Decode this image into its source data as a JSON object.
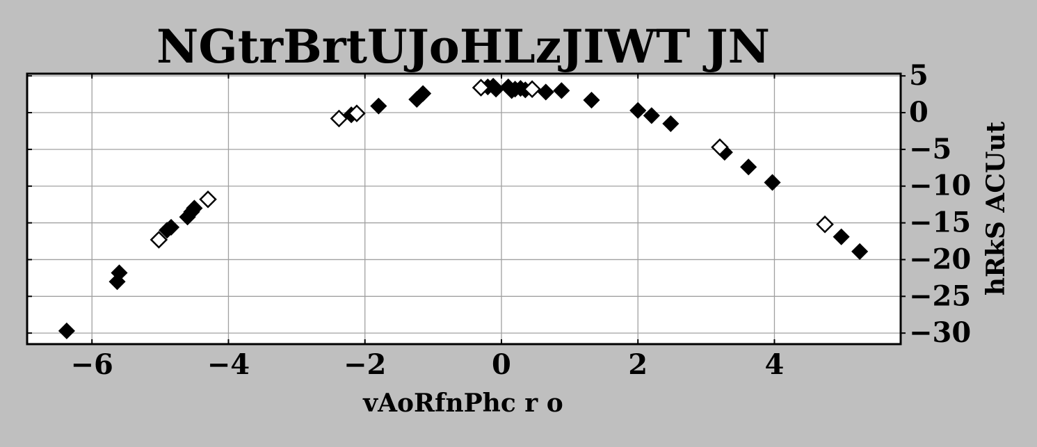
{
  "colors": {
    "background": "#bfbfbf",
    "plot_area": "#ffffff",
    "grid": "#a0a0a0",
    "marker": "#000000"
  },
  "chart_data": {
    "type": "scatter",
    "title": "NGtrBrtUJoHLzJIWT  JN",
    "xlabel": "vAoRfnPhc r o",
    "ylabel": "hRkS ACUut",
    "xlim": [
      -6.95,
      5.85
    ],
    "ylim": [
      -31.5,
      5.3
    ],
    "x_ticks": [
      -6,
      -4,
      -2,
      0,
      2,
      4
    ],
    "y_ticks": [
      5,
      0,
      -5,
      -10,
      -15,
      -20,
      -25,
      -30
    ],
    "y_axis_side": "right",
    "grid": true,
    "marker": "diamond",
    "series": [
      {
        "fill": "filled",
        "points": [
          [
            -6.37,
            -29.7
          ],
          [
            -5.63,
            -23.0
          ],
          [
            -5.6,
            -21.8
          ],
          [
            -4.9,
            -16.0
          ],
          [
            -4.84,
            -15.6
          ],
          [
            -4.6,
            -14.2
          ],
          [
            -4.54,
            -13.5
          ],
          [
            -4.5,
            -13.0
          ],
          [
            -2.2,
            -0.3
          ],
          [
            -1.8,
            0.9
          ],
          [
            -1.24,
            1.8
          ],
          [
            -1.15,
            2.6
          ],
          [
            -0.2,
            3.5
          ],
          [
            -0.12,
            3.6
          ],
          [
            -0.08,
            3.2
          ],
          [
            0.1,
            3.5
          ],
          [
            0.15,
            3.0
          ],
          [
            0.2,
            3.2
          ],
          [
            0.28,
            3.3
          ],
          [
            0.35,
            3.1
          ],
          [
            0.65,
            2.8
          ],
          [
            0.88,
            3.0
          ],
          [
            1.32,
            1.7
          ],
          [
            2.0,
            0.3
          ],
          [
            2.2,
            -0.4
          ],
          [
            2.48,
            -1.5
          ],
          [
            3.27,
            -5.4
          ],
          [
            3.62,
            -7.4
          ],
          [
            3.97,
            -9.5
          ],
          [
            4.98,
            -16.9
          ],
          [
            5.25,
            -18.9
          ]
        ]
      },
      {
        "fill": "open",
        "points": [
          [
            -5.02,
            -17.3
          ],
          [
            -4.3,
            -11.8
          ],
          [
            -2.38,
            -0.8
          ],
          [
            -2.12,
            -0.1
          ],
          [
            -0.3,
            3.4
          ],
          [
            0.45,
            3.2
          ],
          [
            3.2,
            -4.7
          ],
          [
            4.74,
            -15.2
          ]
        ]
      }
    ]
  }
}
